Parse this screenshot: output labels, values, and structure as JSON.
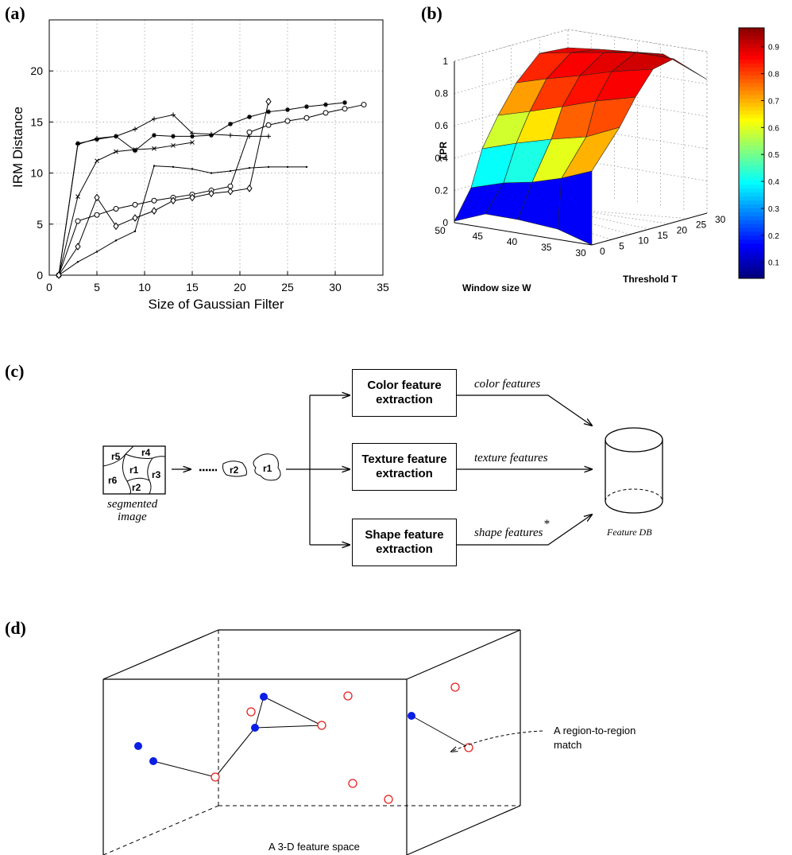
{
  "labels": {
    "a": "(a)",
    "b": "(b)",
    "c": "(c)",
    "d": "(d)"
  },
  "chart_data": [
    {
      "type": "line",
      "title": "",
      "xlabel": "Size of Gaussian Filter",
      "ylabel": "IRM Distance",
      "xlim": [
        0,
        35
      ],
      "ylim": [
        0,
        25
      ],
      "xticks": [
        0,
        5,
        10,
        15,
        20,
        25,
        30,
        35
      ],
      "yticks": [
        0,
        5,
        10,
        15,
        20
      ],
      "grid": true,
      "series": [
        {
          "marker": "star",
          "x": [
            1,
            3,
            5,
            7,
            9,
            11,
            13,
            15,
            17,
            19,
            21,
            23,
            25,
            27,
            29,
            31
          ],
          "y": [
            0,
            12.9,
            13.3,
            13.6,
            12.2,
            13.7,
            13.6,
            13.6,
            13.7,
            14.8,
            15.5,
            16.0,
            16.2,
            16.5,
            16.7,
            16.9
          ]
        },
        {
          "marker": "plus",
          "x": [
            1,
            3,
            5,
            7,
            9,
            11,
            13,
            15,
            17,
            19,
            21,
            23
          ],
          "y": [
            0,
            12.8,
            13.4,
            13.6,
            14.3,
            15.3,
            15.7,
            13.9,
            13.8,
            13.7,
            13.6,
            13.6
          ]
        },
        {
          "marker": "x",
          "x": [
            1,
            3,
            5,
            7,
            9,
            11,
            13,
            15
          ],
          "y": [
            0,
            7.7,
            11.2,
            12.1,
            12.3,
            12.4,
            12.7,
            13.0
          ]
        },
        {
          "marker": "dot",
          "x": [
            1,
            3,
            5,
            7,
            9,
            11,
            13,
            15,
            17,
            19,
            21,
            23,
            25,
            27
          ],
          "y": [
            0,
            1.3,
            2.3,
            3.4,
            4.3,
            10.7,
            10.6,
            10.4,
            10.0,
            10.2,
            10.5,
            10.6,
            10.6,
            10.6
          ]
        },
        {
          "marker": "circle",
          "x": [
            1,
            3,
            5,
            7,
            9,
            11,
            13,
            15,
            17,
            19,
            21,
            23,
            25,
            27,
            29,
            31,
            33
          ],
          "y": [
            0,
            5.3,
            5.9,
            6.5,
            6.9,
            7.3,
            7.6,
            7.9,
            8.3,
            8.7,
            14.0,
            14.7,
            15.1,
            15.4,
            15.9,
            16.3,
            16.7
          ]
        },
        {
          "marker": "diamond",
          "x": [
            1,
            3,
            5,
            7,
            9,
            11,
            13,
            15,
            17,
            19,
            21,
            23
          ],
          "y": [
            0,
            2.8,
            7.6,
            4.8,
            5.6,
            6.3,
            7.3,
            7.6,
            8.0,
            8.2,
            8.5,
            17.0
          ]
        }
      ]
    },
    {
      "type": "surface",
      "title": "",
      "xlabel": "Window size W",
      "ylabel": "Threshold T",
      "zlabel": "TPR",
      "x_ticks": [
        50,
        45,
        40,
        35,
        30
      ],
      "y_ticks": [
        0,
        5,
        10,
        15,
        20,
        25,
        30
      ],
      "z_ticks": [
        0,
        0.2,
        0.4,
        0.6,
        0.8,
        1
      ],
      "colorbar_ticks": [
        0.1,
        0.2,
        0.3,
        0.4,
        0.5,
        0.6,
        0.7,
        0.8,
        0.9
      ],
      "colormap": "jet"
    }
  ],
  "pipeline": {
    "regions": [
      "r5",
      "r4",
      "r1",
      "r6",
      "r3",
      "r2"
    ],
    "image_caption_1": "segmented",
    "image_caption_2": "image",
    "sequence_r2": "r2",
    "sequence_r1": "r1",
    "color_box": "Color feature\nextraction",
    "texture_box": "Texture feature\nextraction",
    "shape_box": "Shape feature\nextraction",
    "color_features": "color features",
    "texture_features": "texture features",
    "shape_features": "shape features",
    "asterisk": "*",
    "db_label": "Feature DB"
  },
  "feature_space": {
    "match_label_1": "A region-to-region",
    "match_label_2": "match",
    "space_label": "A 3-D feature space",
    "colors": {
      "filled": "#0a1ee6",
      "hollow": "#e62020"
    }
  }
}
